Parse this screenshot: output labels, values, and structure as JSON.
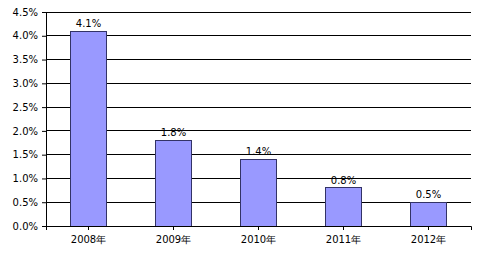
{
  "chart_data": {
    "type": "bar",
    "categories": [
      "2008年",
      "2009年",
      "2010年",
      "2011年",
      "2012年"
    ],
    "values": [
      4.1,
      1.8,
      1.4,
      0.8,
      0.5
    ],
    "value_labels": [
      "4.1%",
      "1.8%",
      "1.4%",
      "0.8%",
      "0.5%"
    ],
    "color": "#9999ff",
    "ylim": [
      0,
      4.5
    ],
    "yticks": [
      {
        "value": 0,
        "label": "0.0%"
      },
      {
        "value": 0.5,
        "label": "0.5%"
      },
      {
        "value": 1,
        "label": "1.0%"
      },
      {
        "value": 1.5,
        "label": "1.5%"
      },
      {
        "value": 2,
        "label": "2.0%"
      },
      {
        "value": 2.5,
        "label": "2.5%"
      },
      {
        "value": 3,
        "label": "3.0%"
      },
      {
        "value": 3.5,
        "label": "3.5%"
      },
      {
        "value": 4,
        "label": "4.0%"
      },
      {
        "value": 4.5,
        "label": "4.5%"
      }
    ],
    "grid": true,
    "data_labels": true
  }
}
